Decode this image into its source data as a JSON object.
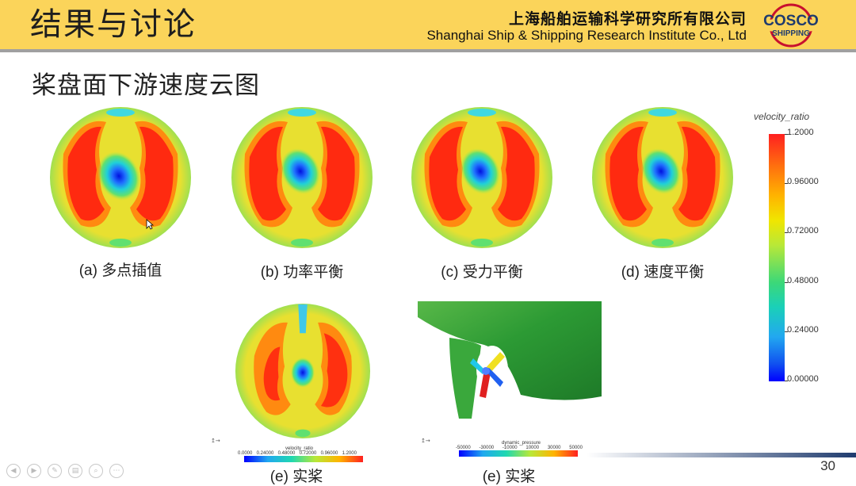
{
  "header": {
    "title": "结果与讨论",
    "org_cn": "上海船舶运输科学研究所有限公司",
    "org_en": "Shanghai Ship & Shipping Research Institute Co., Ltd",
    "logo_line1": "COSCO",
    "logo_line2": "SHIPPING"
  },
  "slide": {
    "subtitle": "桨盘面下游速度云图",
    "page_number": "30"
  },
  "panels": {
    "a": "(a) 多点插值",
    "b": "(b) 功率平衡",
    "c": "(c) 受力平衡",
    "d": "(d) 速度平衡",
    "e1": "(e) 实桨",
    "e2": "(e) 实桨"
  },
  "legend": {
    "title": "velocity_ratio",
    "ticks": [
      "1.2000",
      "0.96000",
      "0.72000",
      "0.48000",
      "0.24000",
      "0.00000"
    ]
  },
  "mini_legend_velocity": {
    "title": "velocity_ratio",
    "ticks": [
      "0.0000",
      "0.24000",
      "0.48000",
      "0.72000",
      "0.96000",
      "1.2000"
    ]
  },
  "mini_legend_pressure": {
    "title": "dynamic_pressure",
    "ticks": [
      "-50000",
      "-30000",
      "-10000",
      "10000",
      "30000",
      "50000"
    ]
  },
  "colors": {
    "header_bg": "#fbd45a",
    "brand_red": "#c8102e",
    "brand_blue": "#1f3b6e"
  },
  "icons": [
    "cursor-icon",
    "nav-prev-icon",
    "nav-next-icon",
    "nav-pen-icon",
    "nav-menu-icon",
    "nav-zoom-icon",
    "nav-more-icon"
  ]
}
